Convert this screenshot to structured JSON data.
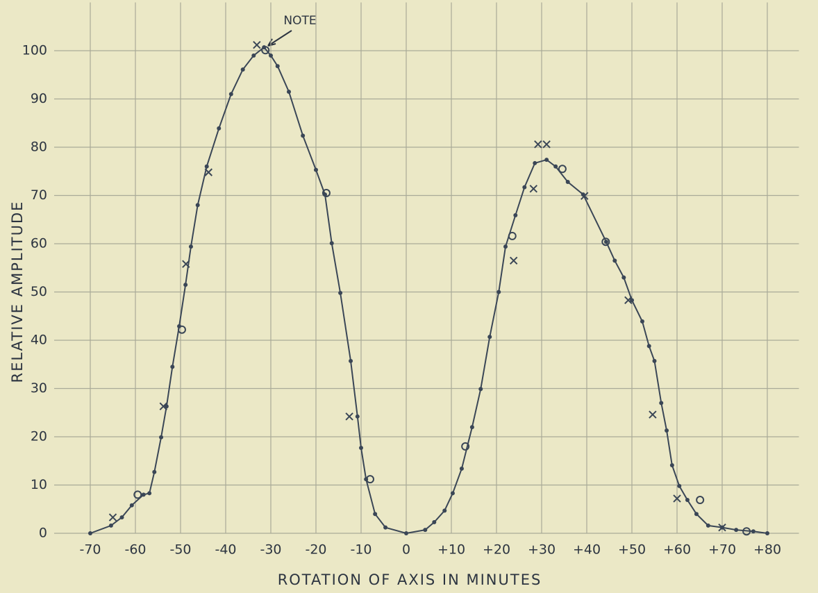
{
  "chart_data": {
    "type": "line",
    "annotation": "NOTE",
    "x_label": "ROTATION OF AXIS IN MINUTES",
    "y_label": "RELATIVE AMPLITUDE",
    "xlim": [
      -78,
      87
    ],
    "ylim": [
      0,
      110
    ],
    "xticks": [
      -70,
      -60,
      -50,
      -40,
      -30,
      -20,
      -10,
      0,
      {
        "value": 10,
        "label": "+10"
      },
      {
        "value": 20,
        "label": "+20"
      },
      {
        "value": 30,
        "label": "+30"
      },
      {
        "value": 40,
        "label": "+40"
      },
      {
        "value": 50,
        "label": "+50"
      },
      {
        "value": 60,
        "label": "+60"
      },
      {
        "value": 70,
        "label": "+70"
      },
      {
        "value": 80,
        "label": "+80"
      }
    ],
    "yticks": [
      0,
      10,
      20,
      30,
      40,
      50,
      60,
      70,
      80,
      90,
      100
    ],
    "grid": true,
    "grid_color": "#a9aa98",
    "series": [
      {
        "marker": "dot",
        "line": true,
        "color": "#3a4656",
        "x": [
          -70,
          -65.4,
          -63,
          -60.8,
          -58.2,
          -56.9,
          -55.8,
          -54.3,
          -53.1,
          -51.8,
          -50.3,
          -48.9,
          -47.7,
          -46.2,
          -44.2,
          -41.5,
          -38.8,
          -36.2,
          -33.8,
          -31.5,
          -30,
          -28.5,
          -26,
          -22.9,
          -20,
          -18,
          -16.5,
          -14.6,
          -12.3,
          -10.8,
          -10,
          -8.9,
          -6.9,
          -4.6,
          0,
          4.2,
          6.2,
          8.5,
          10.3,
          12.3,
          14.6,
          16.5,
          18.5,
          20.5,
          22,
          24.2,
          26.2,
          28.5,
          31.1,
          33.1,
          35.8,
          39.2,
          44.3,
          46.2,
          48.2,
          50,
          52.3,
          53.8,
          55,
          56.5,
          57.7,
          58.9,
          60.5,
          62.3,
          64.3,
          66.9,
          70,
          73.1,
          76.9,
          80
        ],
        "values": [
          0,
          1.6,
          3.3,
          5.8,
          8,
          8.3,
          12.7,
          19.9,
          26.3,
          34.5,
          42.9,
          51.5,
          59.4,
          68,
          76,
          83.9,
          91,
          96.1,
          99,
          100.7,
          99,
          96.8,
          91.5,
          82.4,
          75.3,
          70.2,
          60.1,
          49.8,
          35.7,
          24.2,
          17.7,
          11.2,
          4,
          1.2,
          0,
          0.7,
          2.3,
          4.7,
          8.3,
          13.4,
          22,
          29.9,
          40.7,
          50,
          59.4,
          65.9,
          71.7,
          76.7,
          77.4,
          76,
          72.8,
          70.2,
          60.4,
          56.5,
          53,
          48.3,
          43.9,
          38.8,
          35.7,
          27,
          21.3,
          14.1,
          9.8,
          6.9,
          4,
          1.6,
          1.2,
          0.7,
          0.4,
          0
        ]
      },
      {
        "marker": "x",
        "line": false,
        "color": "#3a4656",
        "x": [
          -65,
          -53.8,
          -48.8,
          -43.8,
          -33.1,
          -12.6,
          23.8,
          28.2,
          29.2,
          31.1,
          39.5,
          49.2,
          54.6,
          60,
          70
        ],
        "values": [
          3.3,
          26.3,
          55.8,
          74.8,
          101.2,
          24.2,
          56.5,
          71.4,
          80.6,
          80.6,
          69.9,
          48.3,
          24.6,
          7.2,
          1.2
        ]
      },
      {
        "marker": "o",
        "line": false,
        "color": "#3a4656",
        "x": [
          -59.5,
          -49.7,
          -31.2,
          -17.7,
          -8,
          13.1,
          23.5,
          34.6,
          44.2,
          65.1,
          75.4
        ],
        "values": [
          8,
          42.2,
          100.1,
          70.5,
          11.2,
          18,
          61.6,
          75.5,
          60.4,
          6.9,
          0.4
        ]
      }
    ]
  }
}
